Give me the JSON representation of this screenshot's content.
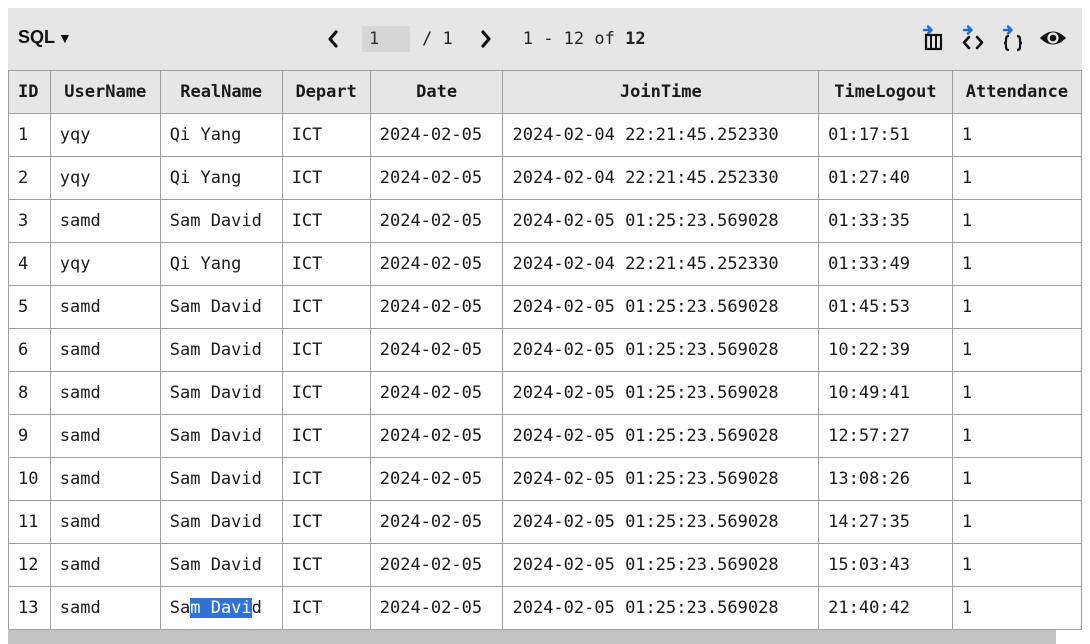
{
  "toolbar": {
    "mode_label": "SQL",
    "mode_caret": "▼",
    "page_input_value": "1",
    "page_total": "/ 1",
    "range_prefix": "1 - 12 of",
    "range_total": "12",
    "icons": [
      "prev-page-icon",
      "next-page-icon",
      "export-table-icon",
      "format-code-icon",
      "json-icon",
      "preview-eye-icon"
    ]
  },
  "grid": {
    "columns": [
      "ID",
      "UserName",
      "RealName",
      "Depart",
      "Date",
      "JoinTime",
      "TimeLogout",
      "Attendance"
    ],
    "rows": [
      [
        "1",
        "yqy",
        "Qi Yang",
        "ICT",
        "2024-02-05",
        "2024-02-04 22:21:45.252330",
        "01:17:51",
        "1"
      ],
      [
        "2",
        "yqy",
        "Qi Yang",
        "ICT",
        "2024-02-05",
        "2024-02-04 22:21:45.252330",
        "01:27:40",
        "1"
      ],
      [
        "3",
        "samd",
        "Sam David",
        "ICT",
        "2024-02-05",
        "2024-02-05 01:25:23.569028",
        "01:33:35",
        "1"
      ],
      [
        "4",
        "yqy",
        "Qi Yang",
        "ICT",
        "2024-02-05",
        "2024-02-04 22:21:45.252330",
        "01:33:49",
        "1"
      ],
      [
        "5",
        "samd",
        "Sam David",
        "ICT",
        "2024-02-05",
        "2024-02-05 01:25:23.569028",
        "01:45:53",
        "1"
      ],
      [
        "6",
        "samd",
        "Sam David",
        "ICT",
        "2024-02-05",
        "2024-02-05 01:25:23.569028",
        "10:22:39",
        "1"
      ],
      [
        "8",
        "samd",
        "Sam David",
        "ICT",
        "2024-02-05",
        "2024-02-05 01:25:23.569028",
        "10:49:41",
        "1"
      ],
      [
        "9",
        "samd",
        "Sam David",
        "ICT",
        "2024-02-05",
        "2024-02-05 01:25:23.569028",
        "12:57:27",
        "1"
      ],
      [
        "10",
        "samd",
        "Sam David",
        "ICT",
        "2024-02-05",
        "2024-02-05 01:25:23.569028",
        "13:08:26",
        "1"
      ],
      [
        "11",
        "samd",
        "Sam David",
        "ICT",
        "2024-02-05",
        "2024-02-05 01:25:23.569028",
        "14:27:35",
        "1"
      ],
      [
        "12",
        "samd",
        "Sam David",
        "ICT",
        "2024-02-05",
        "2024-02-05 01:25:23.569028",
        "15:03:43",
        "1"
      ],
      [
        "13",
        "samd",
        "Sam David",
        "ICT",
        "2024-02-05",
        "2024-02-05 01:25:23.569028",
        "21:40:42",
        "1"
      ]
    ],
    "selection": {
      "row": 11,
      "col": 2,
      "before": "Sa",
      "selected": "m Davi",
      "after": "d"
    }
  },
  "colors": {
    "toolbar_bg": "#e6e6e6",
    "selection": "#2f73d9",
    "icon_accent": "#1e6fd9",
    "border": "#9e9e9e"
  }
}
